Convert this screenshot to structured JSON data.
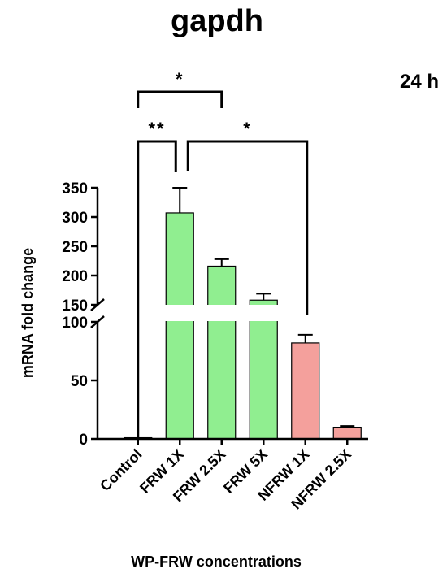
{
  "chart_data": {
    "type": "bar",
    "title": "gapdh",
    "subtitle": "24 h",
    "xlabel": "WP-FRW concentrations",
    "ylabel": "mRNA fold change",
    "categories": [
      "Control",
      "FRW 1X",
      "FRW 2.5X",
      "FRW 5X",
      "NFRW 1X",
      "NFRW 2.5X"
    ],
    "values": [
      1,
      307,
      216,
      158,
      82,
      10
    ],
    "errors": [
      0,
      43,
      12,
      11,
      7,
      1
    ],
    "bar_colors": [
      "#90ee90",
      "#90ee90",
      "#90ee90",
      "#90ee90",
      "#f4a09c",
      "#f4a09c"
    ],
    "y_axis_break": [
      100,
      150
    ],
    "ylim": [
      0,
      350
    ],
    "y_ticks_lower": [
      "0",
      "50",
      "100"
    ],
    "y_ticks_upper": [
      "150",
      "200",
      "250",
      "300",
      "350"
    ],
    "significance": [
      {
        "from": "Control",
        "to": "FRW 2.5X",
        "label": "*"
      },
      {
        "from": "Control",
        "to": "FRW 1X",
        "label": "**"
      },
      {
        "from": "FRW 1X",
        "to": "NFRW 1X",
        "label": "*"
      }
    ]
  }
}
